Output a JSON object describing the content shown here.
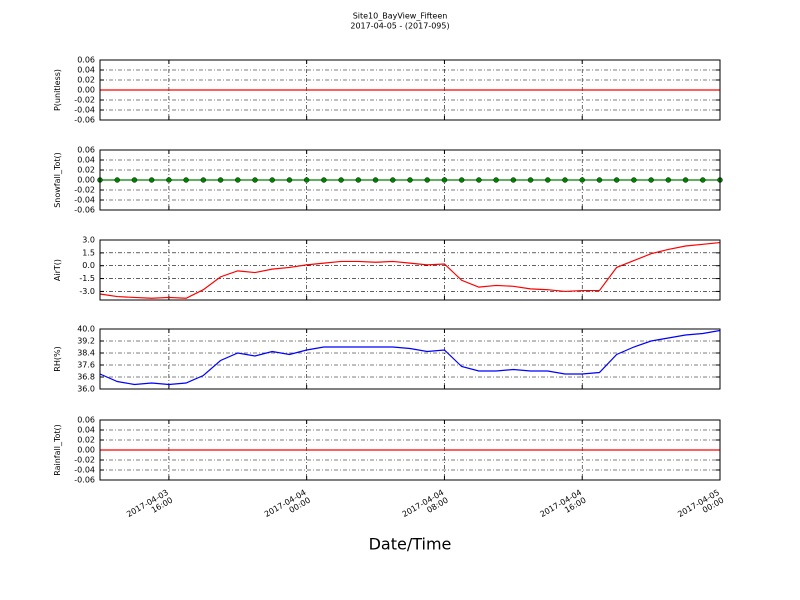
{
  "title": "Site10_BayView_Fifteen",
  "subtitle": "2017-04-05 - (2017-095)",
  "xlabel": "Date/Time",
  "chart_data": [
    {
      "type": "line",
      "ylabel": "P(unitless)",
      "xlim": [
        "2017-04-03 12:00",
        "2017-04-05 00:00"
      ],
      "xticks": [
        "2017-04-03 16:00",
        "2017-04-04 00:00",
        "2017-04-04 08:00",
        "2017-04-04 16:00",
        "2017-04-05 00:00"
      ],
      "ylim": [
        -0.06,
        0.06
      ],
      "yticks": [
        -0.06,
        -0.04,
        -0.02,
        {
          "value": 0,
          "label": "0.00"
        },
        0.02,
        0.04,
        0.06
      ],
      "grid": true,
      "marker": false,
      "x": [
        "2017-04-03 12:00",
        "2017-04-03 13:00",
        "2017-04-03 14:00",
        "2017-04-03 15:00",
        "2017-04-03 16:00",
        "2017-04-03 17:00",
        "2017-04-03 18:00",
        "2017-04-03 19:00",
        "2017-04-03 20:00",
        "2017-04-03 21:00",
        "2017-04-03 22:00",
        "2017-04-03 23:00",
        "2017-04-04 00:00",
        "2017-04-04 01:00",
        "2017-04-04 02:00",
        "2017-04-04 03:00",
        "2017-04-04 04:00",
        "2017-04-04 05:00",
        "2017-04-04 06:00",
        "2017-04-04 07:00",
        "2017-04-04 08:00",
        "2017-04-04 09:00",
        "2017-04-04 10:00",
        "2017-04-04 11:00",
        "2017-04-04 12:00",
        "2017-04-04 13:00",
        "2017-04-04 14:00",
        "2017-04-04 15:00",
        "2017-04-04 16:00",
        "2017-04-04 17:00",
        "2017-04-04 18:00",
        "2017-04-04 19:00",
        "2017-04-04 20:00",
        "2017-04-04 21:00",
        "2017-04-04 22:00",
        "2017-04-04 23:00",
        "2017-04-05 00:00"
      ],
      "color": "#ff0000",
      "values": [
        0,
        0,
        0,
        0,
        0,
        0,
        0,
        0,
        0,
        0,
        0,
        0,
        0,
        0,
        0,
        0,
        0,
        0,
        0,
        0,
        0,
        0,
        0,
        0,
        0,
        0,
        0,
        0,
        0,
        0,
        0,
        0,
        0,
        0,
        0,
        0,
        0
      ]
    },
    {
      "type": "line",
      "ylabel": "Snowfall_Tot()",
      "xlim": [
        "2017-04-03 12:00",
        "2017-04-05 00:00"
      ],
      "xticks": [
        "2017-04-03 16:00",
        "2017-04-04 00:00",
        "2017-04-04 08:00",
        "2017-04-04 16:00",
        "2017-04-05 00:00"
      ],
      "ylim": [
        -0.06,
        0.06
      ],
      "yticks": [
        -0.06,
        -0.04,
        -0.02,
        {
          "value": 0,
          "label": "0.00"
        },
        0.02,
        0.04,
        0.06
      ],
      "grid": true,
      "marker": true,
      "x": [
        "2017-04-03 12:00",
        "2017-04-03 13:00",
        "2017-04-03 14:00",
        "2017-04-03 15:00",
        "2017-04-03 16:00",
        "2017-04-03 17:00",
        "2017-04-03 18:00",
        "2017-04-03 19:00",
        "2017-04-03 20:00",
        "2017-04-03 21:00",
        "2017-04-03 22:00",
        "2017-04-03 23:00",
        "2017-04-04 00:00",
        "2017-04-04 01:00",
        "2017-04-04 02:00",
        "2017-04-04 03:00",
        "2017-04-04 04:00",
        "2017-04-04 05:00",
        "2017-04-04 06:00",
        "2017-04-04 07:00",
        "2017-04-04 08:00",
        "2017-04-04 09:00",
        "2017-04-04 10:00",
        "2017-04-04 11:00",
        "2017-04-04 12:00",
        "2017-04-04 13:00",
        "2017-04-04 14:00",
        "2017-04-04 15:00",
        "2017-04-04 16:00",
        "2017-04-04 17:00",
        "2017-04-04 18:00",
        "2017-04-04 19:00",
        "2017-04-04 20:00",
        "2017-04-04 21:00",
        "2017-04-04 22:00",
        "2017-04-04 23:00",
        "2017-04-05 00:00"
      ],
      "color": "#008000",
      "values": [
        0,
        0,
        0,
        0,
        0,
        0,
        0,
        0,
        0,
        0,
        0,
        0,
        0,
        0,
        0,
        0,
        0,
        0,
        0,
        0,
        0,
        0,
        0,
        0,
        0,
        0,
        0,
        0,
        0,
        0,
        0,
        0,
        0,
        0,
        0,
        0,
        0
      ]
    },
    {
      "type": "line",
      "ylabel": "AirT()",
      "xlim": [
        "2017-04-03 12:00",
        "2017-04-05 00:00"
      ],
      "xticks": [
        "2017-04-03 16:00",
        "2017-04-04 00:00",
        "2017-04-04 08:00",
        "2017-04-04 16:00",
        "2017-04-05 00:00"
      ],
      "ylim": [
        -4,
        3
      ],
      "yticks": [
        {
          "value": -3,
          "label": "-3.0"
        },
        -1.5,
        {
          "value": 0,
          "label": "0.0"
        },
        1.5,
        {
          "value": 3,
          "label": "3.0"
        }
      ],
      "grid": true,
      "marker": false,
      "x": [
        "2017-04-03 12:00",
        "2017-04-03 13:00",
        "2017-04-03 14:00",
        "2017-04-03 15:00",
        "2017-04-03 16:00",
        "2017-04-03 17:00",
        "2017-04-03 18:00",
        "2017-04-03 19:00",
        "2017-04-03 20:00",
        "2017-04-03 21:00",
        "2017-04-03 22:00",
        "2017-04-03 23:00",
        "2017-04-04 00:00",
        "2017-04-04 01:00",
        "2017-04-04 02:00",
        "2017-04-04 03:00",
        "2017-04-04 04:00",
        "2017-04-04 05:00",
        "2017-04-04 06:00",
        "2017-04-04 07:00",
        "2017-04-04 08:00",
        "2017-04-04 09:00",
        "2017-04-04 10:00",
        "2017-04-04 11:00",
        "2017-04-04 12:00",
        "2017-04-04 13:00",
        "2017-04-04 14:00",
        "2017-04-04 15:00",
        "2017-04-04 16:00",
        "2017-04-04 17:00",
        "2017-04-04 18:00",
        "2017-04-04 19:00",
        "2017-04-04 20:00",
        "2017-04-04 21:00",
        "2017-04-04 22:00",
        "2017-04-04 23:00",
        "2017-04-05 00:00"
      ],
      "color": "#ff0000",
      "values": [
        -3.3,
        -3.6,
        -3.7,
        -3.8,
        -3.7,
        -3.8,
        -2.8,
        -1.3,
        -0.6,
        -0.8,
        -0.4,
        -0.2,
        0.1,
        0.3,
        0.5,
        0.5,
        0.4,
        0.5,
        0.3,
        0.1,
        0.2,
        -1.7,
        -2.5,
        -2.3,
        -2.4,
        -2.7,
        -2.8,
        -3.0,
        -2.9,
        -2.9,
        -0.2,
        0.6,
        1.4,
        1.9,
        2.3,
        2.5,
        2.7
      ]
    },
    {
      "type": "line",
      "ylabel": "RH(%)",
      "xlim": [
        "2017-04-03 12:00",
        "2017-04-05 00:00"
      ],
      "xticks": [
        "2017-04-03 16:00",
        "2017-04-04 00:00",
        "2017-04-04 08:00",
        "2017-04-04 16:00",
        "2017-04-05 00:00"
      ],
      "ylim": [
        36,
        40
      ],
      "yticks": [
        {
          "value": 36,
          "label": "36.0"
        },
        36.8,
        37.6,
        38.4,
        39.2,
        {
          "value": 40,
          "label": "40.0"
        }
      ],
      "grid": true,
      "marker": false,
      "x": [
        "2017-04-03 12:00",
        "2017-04-03 13:00",
        "2017-04-03 14:00",
        "2017-04-03 15:00",
        "2017-04-03 16:00",
        "2017-04-03 17:00",
        "2017-04-03 18:00",
        "2017-04-03 19:00",
        "2017-04-03 20:00",
        "2017-04-03 21:00",
        "2017-04-03 22:00",
        "2017-04-03 23:00",
        "2017-04-04 00:00",
        "2017-04-04 01:00",
        "2017-04-04 02:00",
        "2017-04-04 03:00",
        "2017-04-04 04:00",
        "2017-04-04 05:00",
        "2017-04-04 06:00",
        "2017-04-04 07:00",
        "2017-04-04 08:00",
        "2017-04-04 09:00",
        "2017-04-04 10:00",
        "2017-04-04 11:00",
        "2017-04-04 12:00",
        "2017-04-04 13:00",
        "2017-04-04 14:00",
        "2017-04-04 15:00",
        "2017-04-04 16:00",
        "2017-04-04 17:00",
        "2017-04-04 18:00",
        "2017-04-04 19:00",
        "2017-04-04 20:00",
        "2017-04-04 21:00",
        "2017-04-04 22:00",
        "2017-04-04 23:00",
        "2017-04-05 00:00"
      ],
      "color": "#0000ff",
      "values": [
        37.0,
        36.5,
        36.3,
        36.4,
        36.3,
        36.4,
        36.9,
        37.9,
        38.4,
        38.2,
        38.5,
        38.3,
        38.6,
        38.8,
        38.8,
        38.8,
        38.8,
        38.8,
        38.7,
        38.5,
        38.6,
        37.5,
        37.2,
        37.2,
        37.3,
        37.2,
        37.2,
        37.0,
        37.0,
        37.1,
        38.3,
        38.8,
        39.2,
        39.4,
        39.6,
        39.7,
        39.9
      ]
    },
    {
      "type": "line",
      "ylabel": "Rainfall_Tot()",
      "xlim": [
        "2017-04-03 12:00",
        "2017-04-05 00:00"
      ],
      "xticks": [
        "2017-04-03 16:00",
        "2017-04-04 00:00",
        "2017-04-04 08:00",
        "2017-04-04 16:00",
        "2017-04-05 00:00"
      ],
      "ylim": [
        -0.06,
        0.06
      ],
      "yticks": [
        -0.06,
        -0.04,
        -0.02,
        {
          "value": 0,
          "label": "0.00"
        },
        0.02,
        0.04,
        0.06
      ],
      "grid": true,
      "marker": false,
      "xtick_labels": true,
      "x": [
        "2017-04-03 12:00",
        "2017-04-03 13:00",
        "2017-04-03 14:00",
        "2017-04-03 15:00",
        "2017-04-03 16:00",
        "2017-04-03 17:00",
        "2017-04-03 18:00",
        "2017-04-03 19:00",
        "2017-04-03 20:00",
        "2017-04-03 21:00",
        "2017-04-03 22:00",
        "2017-04-03 23:00",
        "2017-04-04 00:00",
        "2017-04-04 01:00",
        "2017-04-04 02:00",
        "2017-04-04 03:00",
        "2017-04-04 04:00",
        "2017-04-04 05:00",
        "2017-04-04 06:00",
        "2017-04-04 07:00",
        "2017-04-04 08:00",
        "2017-04-04 09:00",
        "2017-04-04 10:00",
        "2017-04-04 11:00",
        "2017-04-04 12:00",
        "2017-04-04 13:00",
        "2017-04-04 14:00",
        "2017-04-04 15:00",
        "2017-04-04 16:00",
        "2017-04-04 17:00",
        "2017-04-04 18:00",
        "2017-04-04 19:00",
        "2017-04-04 20:00",
        "2017-04-04 21:00",
        "2017-04-04 22:00",
        "2017-04-04 23:00",
        "2017-04-05 00:00"
      ],
      "color": "#ff0000",
      "values": [
        0,
        0,
        0,
        0,
        0,
        0,
        0,
        0,
        0,
        0,
        0,
        0,
        0,
        0,
        0,
        0,
        0,
        0,
        0,
        0,
        0,
        0,
        0,
        0,
        0,
        0,
        0,
        0,
        0,
        0,
        0,
        0,
        0,
        0,
        0,
        0,
        0
      ]
    }
  ]
}
